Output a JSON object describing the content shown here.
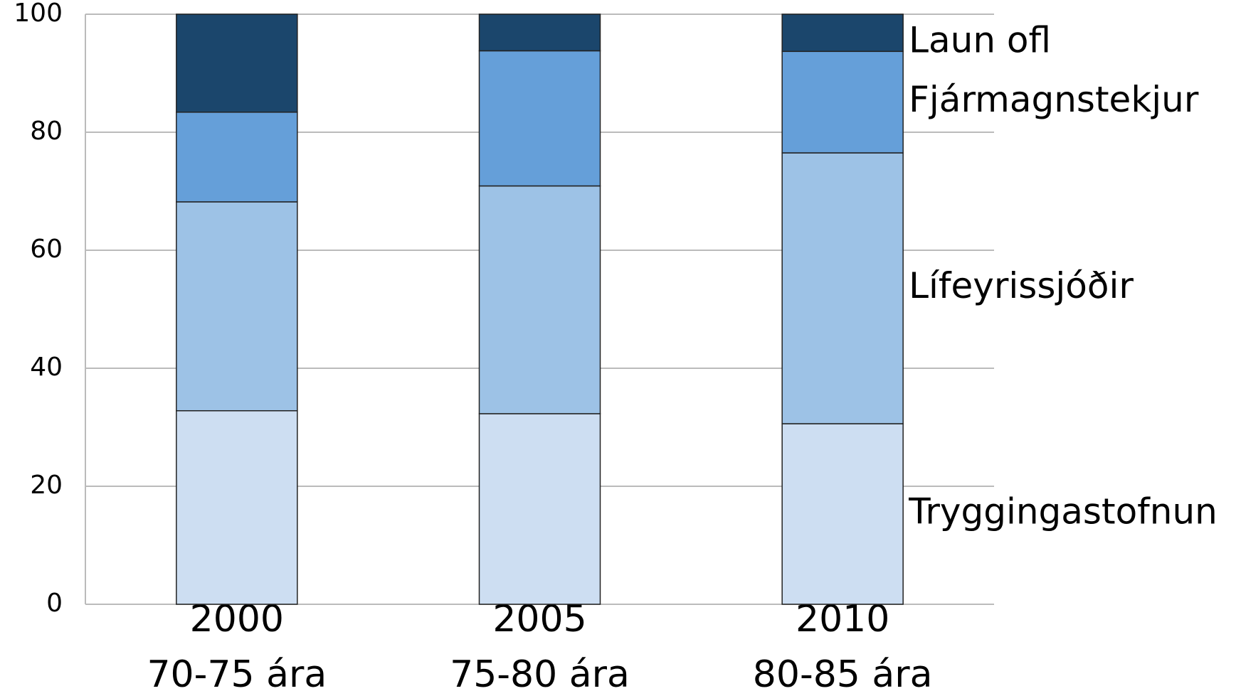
{
  "chart_data": {
    "type": "stacked_bar",
    "categories": [
      [
        "2000",
        "70-75 ára"
      ],
      [
        "2005",
        "75-80 ára"
      ],
      [
        "2010",
        "80-85 ára"
      ]
    ],
    "series": [
      {
        "name": "Tryggingastofnun",
        "color": "#cddef2",
        "values": [
          32.8,
          32.3,
          30.6
        ]
      },
      {
        "name": "Lífeyrissjóðir",
        "color": "#9dc2e6",
        "values": [
          35.4,
          38.6,
          45.9
        ]
      },
      {
        "name": "Fjármagnstekjur",
        "color": "#659fd9",
        "values": [
          15.2,
          22.9,
          17.2
        ]
      },
      {
        "name": "Laun ofl",
        "color": "#1b466c",
        "values": [
          16.6,
          6.2,
          6.3
        ]
      }
    ],
    "ylim": [
      0,
      100
    ],
    "yticks": [
      0,
      20,
      40,
      60,
      80,
      100
    ],
    "grid": true
  }
}
